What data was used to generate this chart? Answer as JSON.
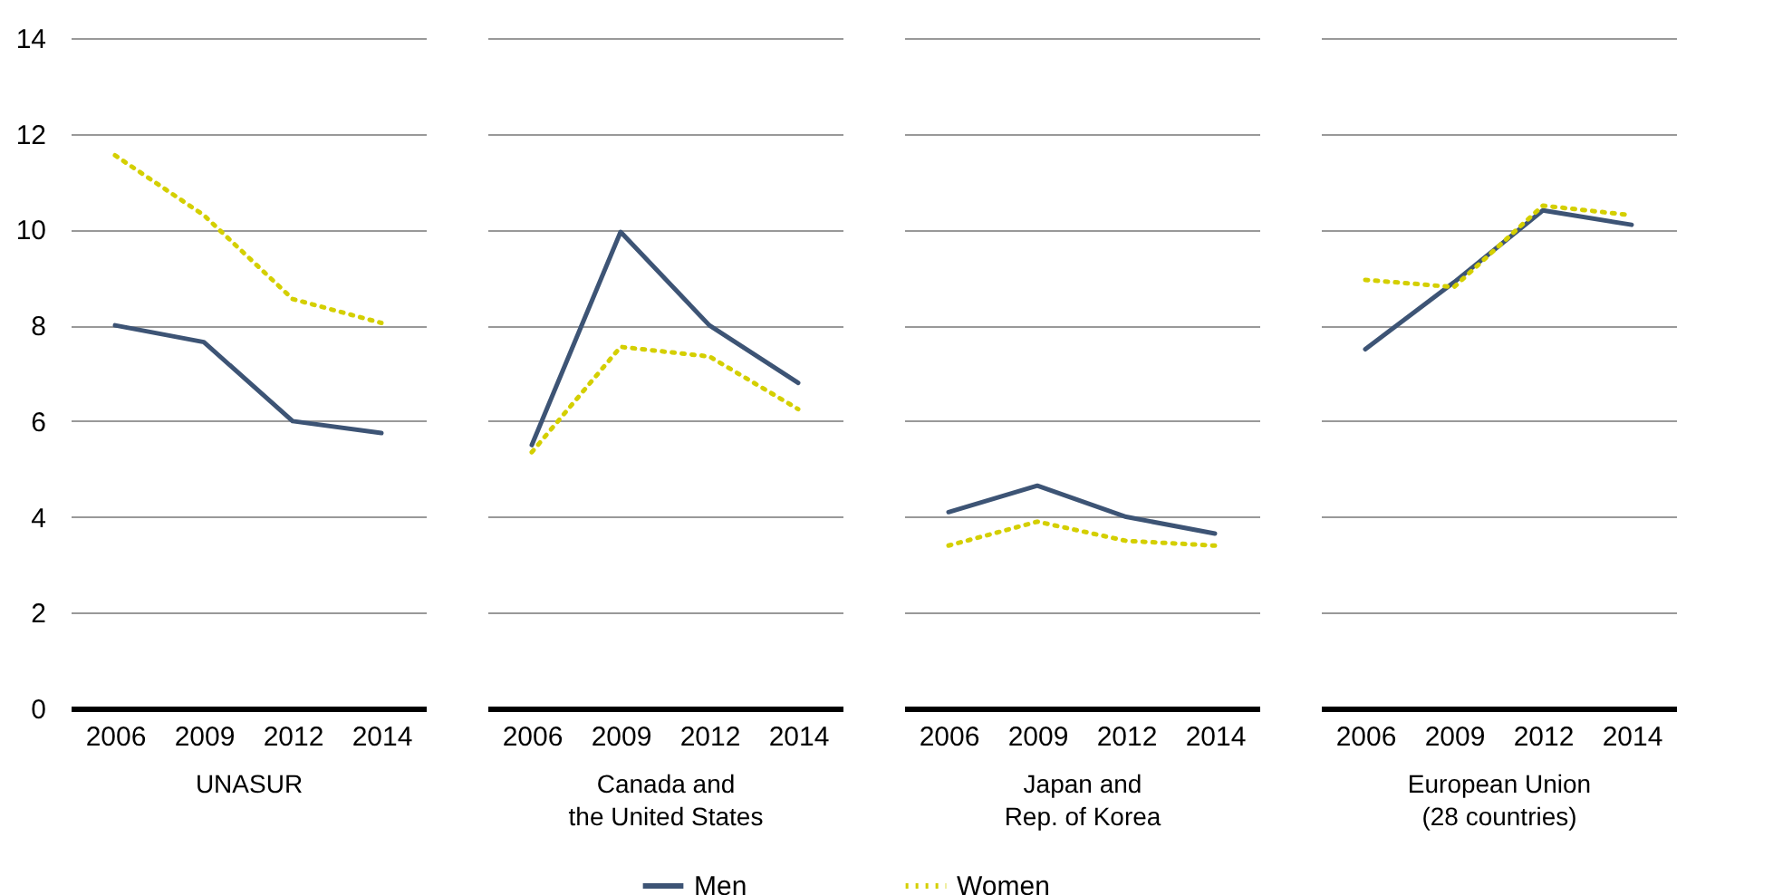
{
  "chart_data": [
    {
      "type": "line",
      "xlabel": "UNASUR",
      "categories": [
        "2006",
        "2009",
        "2012",
        "2014"
      ],
      "ylim": [
        0,
        14
      ],
      "yticks": [
        0,
        2,
        4,
        6,
        8,
        10,
        12,
        14
      ],
      "grid": "y",
      "legend": "bottom",
      "marker": "none",
      "series": [
        {
          "name": "Men",
          "color": "#3d5475",
          "line_style": "solid",
          "values": [
            8.0,
            7.65,
            6.0,
            5.75
          ]
        },
        {
          "name": "Women",
          "color": "#d4cf00",
          "line_style": "dotted",
          "values": [
            11.55,
            10.3,
            8.55,
            8.05
          ]
        }
      ]
    },
    {
      "type": "line",
      "xlabel": "Canada and\nthe United States",
      "categories": [
        "2006",
        "2009",
        "2012",
        "2014"
      ],
      "ylim": [
        0,
        14
      ],
      "yticks": [
        0,
        2,
        4,
        6,
        8,
        10,
        12,
        14
      ],
      "grid": "y",
      "tick_labels": "x",
      "marker": "none",
      "series": [
        {
          "name": "Men",
          "color": "#3d5475",
          "line_style": "solid",
          "values": [
            5.5,
            9.95,
            8.0,
            6.8
          ]
        },
        {
          "name": "Women",
          "color": "#d4cf00",
          "line_style": "dotted",
          "values": [
            5.35,
            7.55,
            7.35,
            6.25
          ]
        }
      ]
    },
    {
      "type": "line",
      "xlabel": "Japan and\nRep. of Korea",
      "categories": [
        "2006",
        "2009",
        "2012",
        "2014"
      ],
      "ylim": [
        0,
        14
      ],
      "yticks": [
        0,
        2,
        4,
        6,
        8,
        10,
        12,
        14
      ],
      "grid": "y",
      "tick_labels": "x",
      "marker": "none",
      "series": [
        {
          "name": "Men",
          "color": "#3d5475",
          "line_style": "solid",
          "values": [
            4.1,
            4.65,
            4.0,
            3.65
          ]
        },
        {
          "name": "Women",
          "color": "#d4cf00",
          "line_style": "dotted",
          "values": [
            3.4,
            3.9,
            3.5,
            3.4
          ]
        }
      ]
    },
    {
      "type": "line",
      "xlabel": "European Union\n(28 countries)",
      "categories": [
        "2006",
        "2009",
        "2012",
        "2014"
      ],
      "ylim": [
        0,
        14
      ],
      "yticks": [
        0,
        2,
        4,
        6,
        8,
        10,
        12,
        14
      ],
      "grid": "y",
      "tick_labels": "x",
      "marker": "none",
      "series": [
        {
          "name": "Men",
          "color": "#3d5475",
          "line_style": "solid",
          "values": [
            7.5,
            8.9,
            10.4,
            10.1
          ]
        },
        {
          "name": "Women",
          "color": "#d4cf00",
          "line_style": "dotted",
          "values": [
            8.95,
            8.8,
            10.5,
            10.3
          ]
        }
      ]
    }
  ]
}
